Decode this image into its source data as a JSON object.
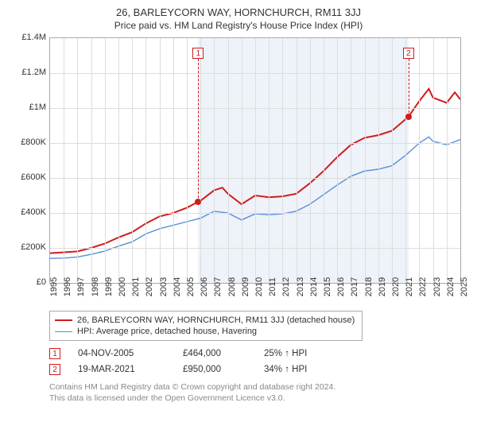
{
  "title": "26, BARLEYCORN WAY, HORNCHURCH, RM11 3JJ",
  "subtitle": "Price paid vs. HM Land Registry's House Price Index (HPI)",
  "chart": {
    "type": "line",
    "background_color": "#ffffff",
    "grid_color": "#dddddd",
    "border_color": "#aaaaaa",
    "shade_color": "#eef2f9",
    "xlim": [
      1995,
      2025
    ],
    "ylim": [
      0,
      1400000
    ],
    "ytick_step": 200000,
    "yticks": [
      "£0",
      "£200K",
      "£400K",
      "£600K",
      "£800K",
      "£1M",
      "£1.2M",
      "£1.4M"
    ],
    "xticks": [
      1995,
      1996,
      1997,
      1998,
      1999,
      2000,
      2001,
      2002,
      2003,
      2004,
      2005,
      2006,
      2007,
      2008,
      2009,
      2010,
      2011,
      2012,
      2013,
      2014,
      2015,
      2016,
      2017,
      2018,
      2019,
      2020,
      2021,
      2022,
      2023,
      2024,
      2025
    ],
    "shade_start": 2005.84,
    "shade_end": 2021.21,
    "label_fontsize": 11,
    "series": [
      {
        "name": "26, BARLEYCORN WAY, HORNCHURCH, RM11 3JJ (detached house)",
        "color": "#d01c1c",
        "width": 2,
        "data": [
          [
            1995,
            170000
          ],
          [
            1996,
            175000
          ],
          [
            1997,
            180000
          ],
          [
            1998,
            200000
          ],
          [
            1999,
            225000
          ],
          [
            2000,
            260000
          ],
          [
            2001,
            290000
          ],
          [
            2002,
            340000
          ],
          [
            2003,
            380000
          ],
          [
            2004,
            400000
          ],
          [
            2005,
            430000
          ],
          [
            2005.84,
            464000
          ],
          [
            2006,
            470000
          ],
          [
            2007,
            530000
          ],
          [
            2007.6,
            545000
          ],
          [
            2008,
            510000
          ],
          [
            2009,
            450000
          ],
          [
            2010,
            500000
          ],
          [
            2011,
            490000
          ],
          [
            2012,
            495000
          ],
          [
            2013,
            510000
          ],
          [
            2014,
            570000
          ],
          [
            2015,
            640000
          ],
          [
            2016,
            720000
          ],
          [
            2017,
            790000
          ],
          [
            2018,
            830000
          ],
          [
            2019,
            845000
          ],
          [
            2020,
            870000
          ],
          [
            2021.21,
            950000
          ],
          [
            2022,
            1040000
          ],
          [
            2022.7,
            1110000
          ],
          [
            2023,
            1060000
          ],
          [
            2024,
            1030000
          ],
          [
            2024.6,
            1090000
          ],
          [
            2025,
            1050000
          ]
        ]
      },
      {
        "name": "HPI: Average price, detached house, Havering",
        "color": "#5b8fd6",
        "width": 1.4,
        "data": [
          [
            1995,
            140000
          ],
          [
            1996,
            142000
          ],
          [
            1997,
            148000
          ],
          [
            1998,
            163000
          ],
          [
            1999,
            182000
          ],
          [
            2000,
            210000
          ],
          [
            2001,
            235000
          ],
          [
            2002,
            280000
          ],
          [
            2003,
            310000
          ],
          [
            2004,
            330000
          ],
          [
            2005,
            350000
          ],
          [
            2006,
            370000
          ],
          [
            2007,
            410000
          ],
          [
            2008,
            400000
          ],
          [
            2009,
            360000
          ],
          [
            2010,
            395000
          ],
          [
            2011,
            390000
          ],
          [
            2012,
            395000
          ],
          [
            2013,
            410000
          ],
          [
            2014,
            450000
          ],
          [
            2015,
            505000
          ],
          [
            2016,
            560000
          ],
          [
            2017,
            610000
          ],
          [
            2018,
            640000
          ],
          [
            2019,
            650000
          ],
          [
            2020,
            670000
          ],
          [
            2021,
            730000
          ],
          [
            2022,
            800000
          ],
          [
            2022.7,
            835000
          ],
          [
            2023,
            810000
          ],
          [
            2024,
            790000
          ],
          [
            2025,
            820000
          ]
        ]
      }
    ],
    "markers": [
      {
        "n": "1",
        "x": 2005.84,
        "y": 464000
      },
      {
        "n": "2",
        "x": 2021.21,
        "y": 950000
      }
    ]
  },
  "legend": {
    "items": [
      {
        "label": "26, BARLEYCORN WAY, HORNCHURCH, RM11 3JJ (detached house)",
        "color": "#d01c1c",
        "width": 2
      },
      {
        "label": "HPI: Average price, detached house, Havering",
        "color": "#5b8fd6",
        "width": 1.4
      }
    ]
  },
  "sales": [
    {
      "n": "1",
      "date": "04-NOV-2005",
      "price": "£464,000",
      "delta": "25% ↑ HPI"
    },
    {
      "n": "2",
      "date": "19-MAR-2021",
      "price": "£950,000",
      "delta": "34% ↑ HPI"
    }
  ],
  "footer": {
    "line1": "Contains HM Land Registry data © Crown copyright and database right 2024.",
    "line2": "This data is licensed under the Open Government Licence v3.0."
  }
}
